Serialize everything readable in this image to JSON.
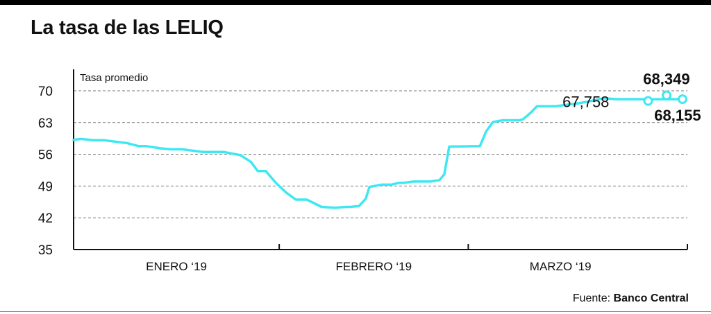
{
  "header": {
    "title": "La tasa de las LELIQ"
  },
  "footer": {
    "source_prefix": "Fuente:",
    "source_name": "Banco Central"
  },
  "colors": {
    "line": "#3ee8f2",
    "text": "#111111",
    "grid": "#777777"
  },
  "chart_data": {
    "type": "line",
    "title": "La tasa de las LELIQ",
    "ylabel": "Tasa promedio",
    "xlabel": "",
    "ylim": [
      35,
      72
    ],
    "yticks": [
      35,
      42,
      49,
      56,
      63,
      70
    ],
    "ytick_labels": [
      "35",
      "42",
      "49",
      "56",
      "63",
      "70"
    ],
    "x_range": [
      0,
      100
    ],
    "x_categories": [
      {
        "label": "ENERO ‘19",
        "start": 0,
        "end": 33.5
      },
      {
        "label": "FEBRERO ‘19",
        "start": 33.5,
        "end": 64.3
      },
      {
        "label": "MARZO ‘19",
        "start": 64.3,
        "end": 100
      }
    ],
    "grid": true,
    "series": [
      {
        "x": [
          0,
          1.2,
          3.2,
          5.0,
          7.9,
          8.6,
          10.6,
          11.8,
          14.3,
          15.8,
          17.7,
          18.8,
          20.0,
          21.1,
          24.5,
          27.2,
          28.9,
          30.0,
          31.3,
          33.1,
          34.7,
          36.2,
          38.0,
          40.4,
          42.6,
          44.3,
          45.1,
          46.5,
          47.6,
          48.2,
          50.2,
          51.7,
          53.0,
          53.7,
          55.4,
          56.5,
          58.1,
          59.6,
          60.4,
          61.2,
          66.2,
          67.2,
          68.3,
          69.9,
          71.7,
          72.6,
          73.2,
          74.5,
          75.5,
          78.6,
          80.8,
          82.1,
          84.3,
          86.3,
          88.5,
          91.0,
          93.5,
          96.3,
          99.2
        ],
        "y": [
          59.2,
          59.4,
          59.1,
          59.1,
          58.6,
          58.5,
          57.8,
          57.8,
          57.3,
          57.1,
          57.1,
          56.9,
          56.7,
          56.5,
          56.5,
          55.8,
          54.3,
          52.3,
          52.3,
          49.5,
          47.5,
          46.0,
          46.0,
          44.4,
          44.2,
          44.4,
          44.4,
          44.6,
          46.2,
          48.8,
          49.3,
          49.3,
          49.7,
          49.7,
          50.0,
          50.0,
          50.0,
          50.3,
          51.6,
          57.7,
          57.8,
          61.0,
          63.1,
          63.5,
          63.5,
          63.5,
          63.7,
          65.2,
          66.6,
          66.6,
          67.0,
          67.2,
          67.758,
          68.349,
          68.155,
          68.155,
          68.155,
          68.155,
          68.155
        ]
      }
    ],
    "highlight_points": [
      {
        "x": 93.6,
        "y": 67.758,
        "label": "67,758",
        "bold": false
      },
      {
        "x": 96.6,
        "y": 69.0,
        "label": "68,349",
        "bold": true
      },
      {
        "x": 99.2,
        "y": 68.155,
        "label": "68,155",
        "bold": true
      }
    ]
  }
}
